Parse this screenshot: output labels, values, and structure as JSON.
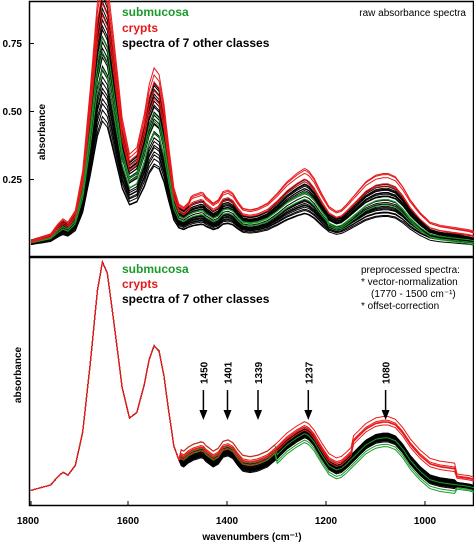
{
  "chart_data": [
    {
      "type": "line",
      "panel": "top",
      "annotation_lines": [
        "raw absorbance spectra"
      ],
      "ylabel": "absorbance",
      "yticks": [
        "0.25",
        "0.50",
        "0.75"
      ],
      "ylim": [
        0.0,
        0.88
      ],
      "xlim": [
        1800,
        900
      ],
      "legend": [
        {
          "label": "submucosa",
          "color": "#1a9a2a"
        },
        {
          "label": "crypts",
          "color": "#e8191b"
        },
        {
          "label": "spectra of 7 other classes",
          "color": "#000000"
        }
      ],
      "series": [
        {
          "group": "crypts",
          "color": "#e8191b",
          "count": 5,
          "peak_amide_I": [
            0.79,
            0.86
          ],
          "scale_range": [
            1.02,
            1.22
          ]
        },
        {
          "group": "submucosa",
          "color": "#1a9a2a",
          "count": 3,
          "peak_amide_I": [
            0.5,
            0.6
          ],
          "scale_range": [
            0.78,
            0.92
          ]
        },
        {
          "group": "other",
          "color": "#000000",
          "count": 24,
          "peak_amide_I": [
            0.39,
            0.82
          ],
          "scale_range": [
            0.55,
            1.12
          ]
        }
      ],
      "shape_points": {
        "x": [
          1800,
          1760,
          1745,
          1735,
          1725,
          1710,
          1695,
          1680,
          1665,
          1655,
          1645,
          1630,
          1615,
          1600,
          1585,
          1570,
          1560,
          1550,
          1540,
          1530,
          1520,
          1510,
          1500,
          1490,
          1480,
          1470,
          1460,
          1452,
          1445,
          1430,
          1420,
          1410,
          1400,
          1390,
          1380,
          1370,
          1355,
          1340,
          1320,
          1300,
          1280,
          1260,
          1245,
          1237,
          1225,
          1210,
          1195,
          1180,
          1170,
          1160,
          1140,
          1120,
          1100,
          1085,
          1075,
          1060,
          1045,
          1030,
          1010,
          990,
          970,
          950,
          930,
          910,
          900
        ],
        "y": [
          0.02,
          0.04,
          0.07,
          0.085,
          0.075,
          0.11,
          0.23,
          0.47,
          0.74,
          0.84,
          0.8,
          0.6,
          0.39,
          0.28,
          0.3,
          0.4,
          0.49,
          0.54,
          0.52,
          0.43,
          0.3,
          0.18,
          0.13,
          0.12,
          0.135,
          0.145,
          0.15,
          0.155,
          0.14,
          0.12,
          0.13,
          0.155,
          0.16,
          0.15,
          0.125,
          0.105,
          0.1,
          0.105,
          0.12,
          0.15,
          0.185,
          0.21,
          0.225,
          0.22,
          0.195,
          0.15,
          0.11,
          0.095,
          0.1,
          0.115,
          0.15,
          0.185,
          0.205,
          0.21,
          0.21,
          0.2,
          0.17,
          0.13,
          0.09,
          0.06,
          0.05,
          0.045,
          0.04,
          0.035,
          0.03
        ]
      }
    },
    {
      "type": "line",
      "panel": "bottom",
      "annotation_lines": [
        "preprocessed spectra:",
        "* vector-normalization",
        "(1770 - 1500 cm⁻¹)",
        "* offset-correction"
      ],
      "ylabel": "absorbance",
      "xlabel": "wavenumbers (cm⁻¹)",
      "xticks": [
        "1800",
        "1600",
        "1400",
        "1200",
        "1000"
      ],
      "xlim": [
        1800,
        900
      ],
      "legend": [
        {
          "label": "submucosa",
          "color": "#1a9a2a"
        },
        {
          "label": "crypts",
          "color": "#e8191b"
        },
        {
          "label": "spectra of 7 other classes",
          "color": "#000000"
        }
      ],
      "peak_labels": [
        {
          "wavenumber": 1450,
          "label": "1450"
        },
        {
          "wavenumber": 1401,
          "label": "1401"
        },
        {
          "wavenumber": 1339,
          "label": "1339"
        },
        {
          "wavenumber": 1237,
          "label": "1237"
        },
        {
          "wavenumber": 1080,
          "label": "1080"
        }
      ],
      "series": [
        {
          "group": "crypts",
          "color": "#e8191b",
          "count": 5,
          "variation": "higher in 1480-1000 region"
        },
        {
          "group": "submucosa",
          "color": "#1a9a2a",
          "count": 3,
          "variation": "higher near 1450/1401/1339"
        },
        {
          "group": "other",
          "color": "#000000",
          "count": 24,
          "variation": "overlapping"
        }
      ]
    }
  ],
  "colors": {
    "crypts": "#e8191b",
    "submucosa": "#1a9a2a",
    "other": "#000000",
    "frame": "#000000"
  }
}
